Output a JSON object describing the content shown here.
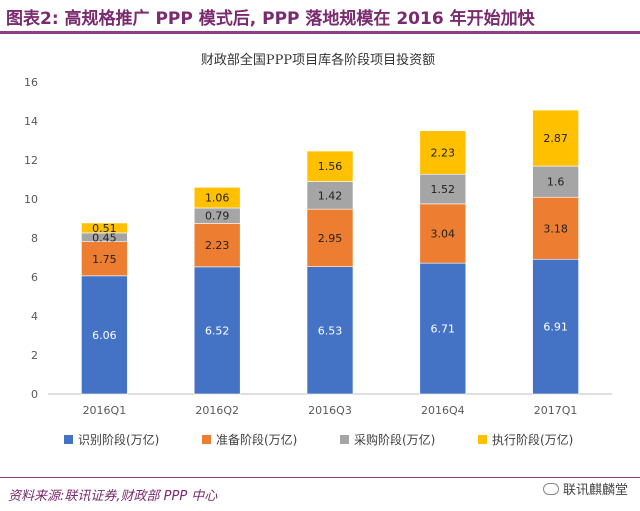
{
  "header": {
    "title": "图表2:  高规格推广 PPP 模式后, PPP 落地规模在 2016 年开始加快"
  },
  "chart_data": {
    "type": "bar",
    "stacked": true,
    "title": "财政部全国PPP项目库各阶段项目投资额",
    "xlabel": "",
    "ylabel": "",
    "ylim": [
      0,
      16
    ],
    "yticks": [
      0,
      2,
      4,
      6,
      8,
      10,
      12,
      14,
      16
    ],
    "grid": false,
    "legend_position": "bottom",
    "categories": [
      "2016Q1",
      "2016Q2",
      "2016Q3",
      "2016Q4",
      "2017Q1"
    ],
    "series": [
      {
        "name": "识别阶段(万亿)",
        "color": "#4472c4",
        "values": [
          6.06,
          6.52,
          6.53,
          6.71,
          6.91
        ]
      },
      {
        "name": "准备阶段(万亿)",
        "color": "#ed7d31",
        "values": [
          1.75,
          2.23,
          2.95,
          3.04,
          3.18
        ]
      },
      {
        "name": "采购阶段(万亿)",
        "color": "#a5a5a5",
        "values": [
          0.45,
          0.79,
          1.42,
          1.52,
          1.6
        ]
      },
      {
        "name": "执行阶段(万亿)",
        "color": "#ffc000",
        "values": [
          0.51,
          1.06,
          1.56,
          2.23,
          2.87
        ]
      }
    ]
  },
  "footer": {
    "source": "资料来源:联讯证券,财政部 PPP 中心",
    "brand": "联讯麒麟堂",
    "brand_icon": "wechat-icon"
  }
}
